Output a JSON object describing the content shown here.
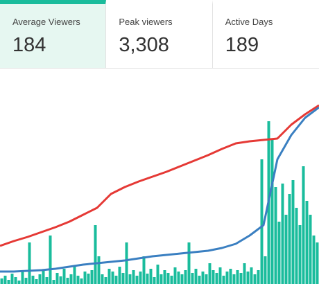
{
  "stats": [
    {
      "label": "Average Viewers",
      "value": "184"
    },
    {
      "label": "Peak viewers",
      "value": "3,308"
    },
    {
      "label": "Active Days",
      "value": "189"
    }
  ],
  "chart_data": {
    "type": "bar",
    "color": "#1abc9c",
    "ylim": [
      0,
      280
    ],
    "values": [
      8,
      12,
      6,
      15,
      10,
      5,
      18,
      9,
      60,
      12,
      7,
      14,
      20,
      10,
      70,
      6,
      16,
      11,
      22,
      9,
      14,
      25,
      12,
      8,
      18,
      15,
      20,
      85,
      40,
      14,
      10,
      22,
      18,
      12,
      25,
      16,
      60,
      14,
      20,
      12,
      18,
      40,
      15,
      22,
      10,
      28,
      14,
      20,
      16,
      12,
      24,
      18,
      14,
      20,
      60,
      16,
      22,
      12,
      18,
      14,
      30,
      20,
      16,
      24,
      12,
      18,
      22,
      14,
      20,
      16,
      30,
      18,
      24,
      14,
      20,
      180,
      40,
      235,
      210,
      140,
      90,
      145,
      100,
      130,
      150,
      110,
      85,
      170,
      120,
      100,
      70,
      60
    ],
    "lines": [
      {
        "color": "#e53935",
        "values": [
          55,
          62,
          68,
          75,
          82,
          90,
          100,
          110,
          130,
          140,
          148,
          155,
          162,
          170,
          178,
          186,
          195,
          203,
          206,
          208,
          210,
          230,
          245,
          258
        ]
      },
      {
        "color": "#3a7fc1",
        "values": [
          18,
          18,
          19,
          20,
          22,
          25,
          28,
          30,
          32,
          34,
          37,
          40,
          42,
          44,
          46,
          48,
          52,
          58,
          70,
          85,
          180,
          215,
          240,
          255
        ]
      }
    ]
  }
}
